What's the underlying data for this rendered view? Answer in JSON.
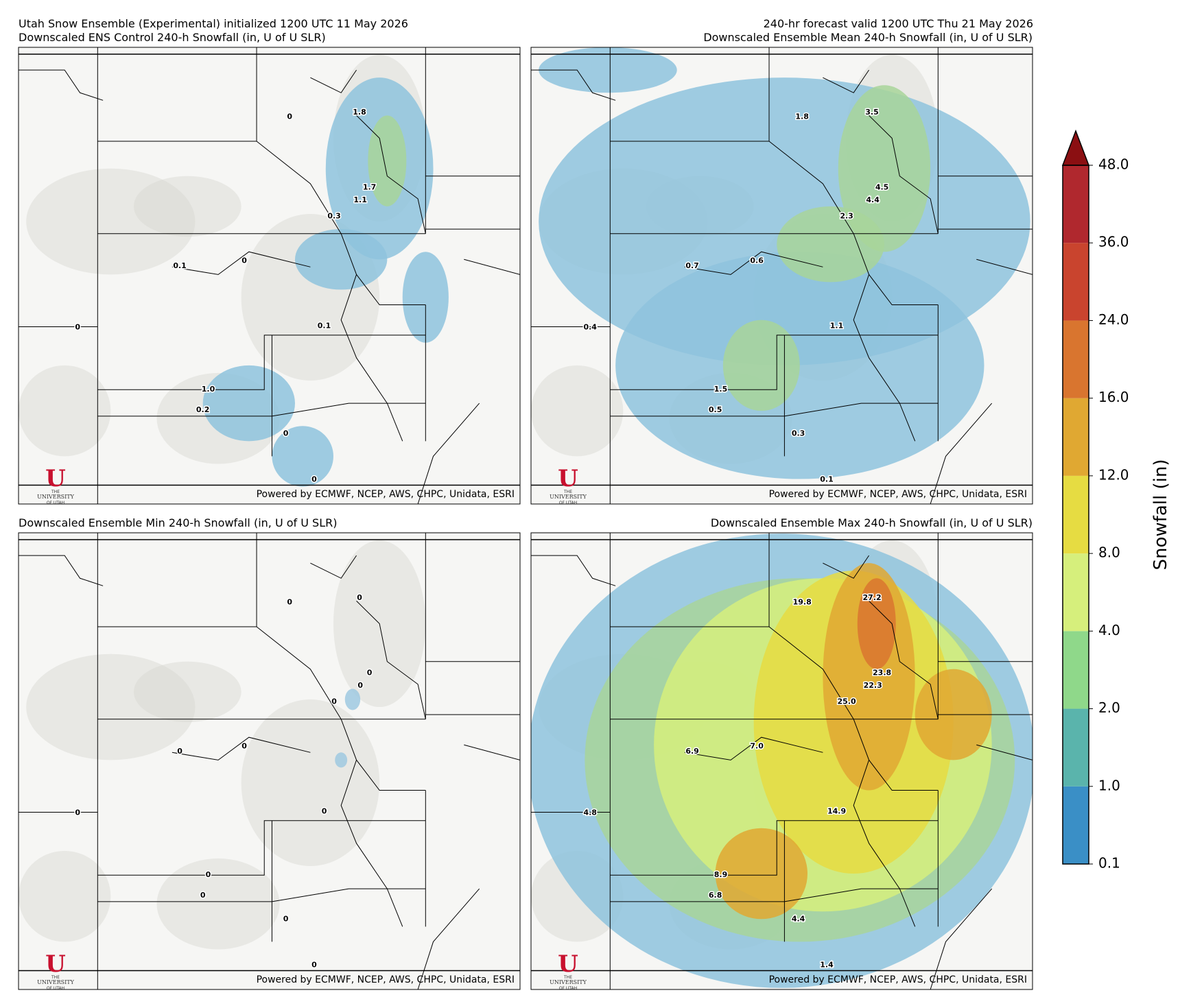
{
  "header": {
    "init": "Utah Snow Ensemble (Experimental) initialized 1200 UTC 11 May 2026",
    "valid": "240-hr forecast valid 1200 UTC Thu 21 May 2026"
  },
  "panels": [
    {
      "title": "Downscaled ENS Control 240-h Snowfall (in, U of U SLR)",
      "labels": [
        "0",
        "1.8",
        "1.7",
        "1.1",
        "0.3",
        "0.1",
        "0",
        "0",
        "0.1",
        "1.0",
        "0.2",
        "0",
        "0"
      ]
    },
    {
      "title": "Downscaled Ensemble Mean 240-h Snowfall (in, U of U SLR)",
      "labels": [
        "1.8",
        "3.5",
        "4.5",
        "4.4",
        "2.3",
        "0.7",
        "0.6",
        "0.4",
        "1.1",
        "1.5",
        "0.5",
        "0.3",
        "0.1"
      ]
    },
    {
      "title": "Downscaled Ensemble Min 240-h Snowfall (in, U of U SLR)",
      "labels": [
        "0",
        "0",
        "0",
        "0",
        "0",
        "0",
        "0",
        "0",
        "0",
        "0",
        "0",
        "0",
        "0"
      ]
    },
    {
      "title": "Downscaled Ensemble Max 240-h Snowfall (in, U of U SLR)",
      "labels": [
        "19.8",
        "27.2",
        "23.8",
        "22.3",
        "25.0",
        "6.9",
        "7.0",
        "4.8",
        "14.9",
        "8.9",
        "6.8",
        "4.4",
        "1.4"
      ]
    }
  ],
  "credit": "Powered by ECMWF, NCEP, AWS, CHPC, Unidata, ESRI",
  "logo": {
    "u": "U",
    "the": "THE",
    "name": "UNIVERSITY",
    "of": "OF UTAH"
  },
  "colorbar": {
    "title": "Snowfall (in)",
    "levels": [
      "0.1",
      "1.0",
      "2.0",
      "4.0",
      "8.0",
      "12.0",
      "16.0",
      "24.0",
      "36.0",
      "48.0"
    ],
    "colors": [
      "#3a8fc6",
      "#5ab4ac",
      "#8fd88a",
      "#d6ef7c",
      "#e6dc42",
      "#e0a832",
      "#d9752f",
      "#c9442e",
      "#b0282e",
      "#8b0f12"
    ]
  }
}
